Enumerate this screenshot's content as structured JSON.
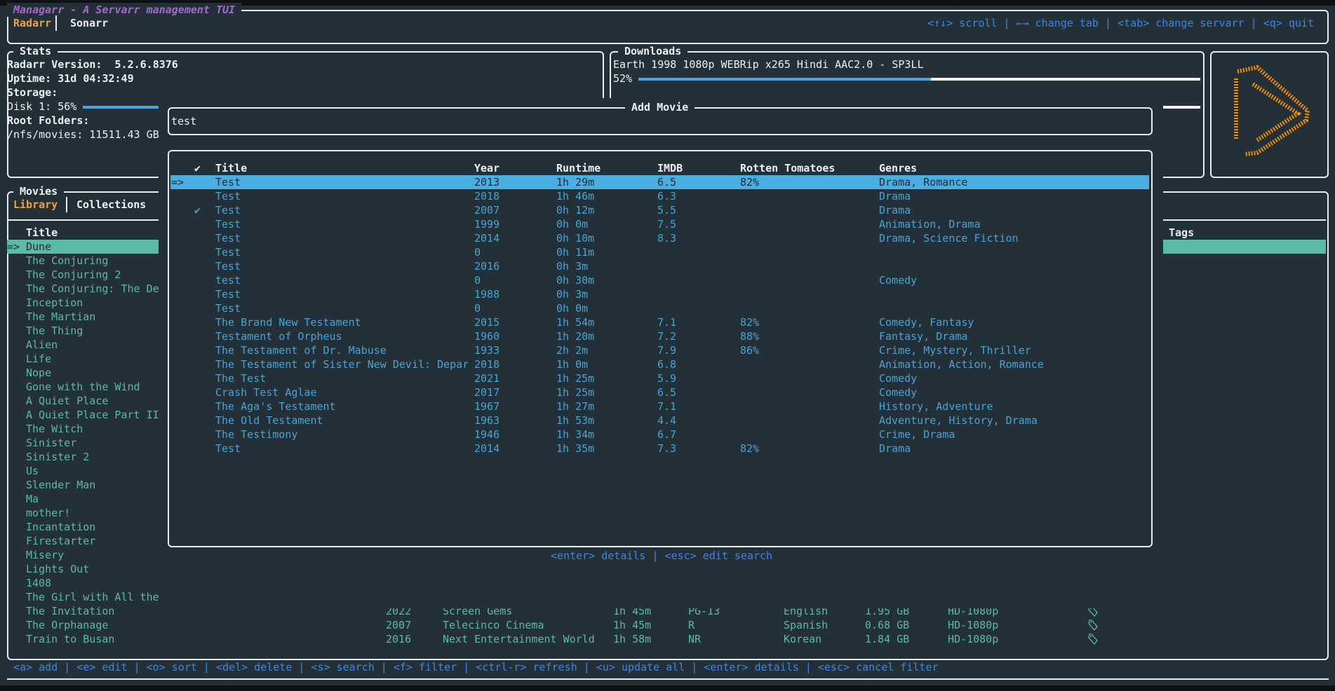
{
  "app": {
    "title": "Managarr - A Servarr management TUI",
    "tabs": [
      "Radarr",
      "Sonarr"
    ],
    "active_tab": "Radarr",
    "help": "<↑↓> scroll | ←→ change tab | <tab> change servarr | <q> quit"
  },
  "stats": {
    "title": "Stats",
    "version_label": "Radarr Version:  5.2.6.8376",
    "uptime": "Uptime: 31d 04:32:49",
    "storage_label": "Storage:",
    "disk": "Disk 1: 56%",
    "disk_percent": 56,
    "root_label": "Root Folders:",
    "root": "/nfs/movies: 11511.43 GB"
  },
  "downloads": {
    "title": "Downloads",
    "items": [
      {
        "name": "Earth 1998 1080p WEBRip x265 Hindi AAC2.0 - SP3LL",
        "percent_label": "52%",
        "percent": 52
      }
    ]
  },
  "colors": {
    "background": "#243038",
    "selection_blue": "#4baee3",
    "selection_teal": "#5bbaa7",
    "accent_orange": "#f0a040",
    "title_purple": "#a36ac7",
    "help_blue": "#3d86e6"
  },
  "logo": {
    "icon": "radarr-logo-icon"
  },
  "movies": {
    "title": "Movies",
    "tabs": [
      "Library",
      "Collections"
    ],
    "active_tab": "Library",
    "columns": {
      "title": "Title",
      "tags": "Tags"
    },
    "selected_marker": "=>",
    "library": [
      "Dune",
      "The Conjuring",
      "The Conjuring 2",
      "The Conjuring: The De",
      "Inception",
      "The Martian",
      "The Thing",
      "Alien",
      "Life",
      "Nope",
      "Gone with the Wind",
      "A Quiet Place",
      "A Quiet Place Part II",
      "The Witch",
      "Sinister",
      "Sinister 2",
      "Us",
      "Slender Man",
      "Ma",
      "mother!",
      "Incantation",
      "Firestarter",
      "Misery",
      "Lights Out",
      "1408",
      "The Girl with All the",
      "The Invitation",
      "The Orphanage",
      "Train to Busan"
    ],
    "visible_details": [
      {
        "year": "2022",
        "studio": "Screen Gems",
        "runtime": "1h 45m",
        "rating": "PG-13",
        "language": "English",
        "size": "1.95 GB",
        "quality": "HD-1080p",
        "icon": "tag-icon"
      },
      {
        "year": "2007",
        "studio": "Telecinco Cinema",
        "runtime": "1h 45m",
        "rating": "R",
        "language": "Spanish",
        "size": "0.68 GB",
        "quality": "HD-1080p",
        "icon": "tag-icon"
      },
      {
        "year": "2016",
        "studio": "Next Entertainment World",
        "runtime": "1h 58m",
        "rating": "NR",
        "language": "Korean",
        "size": "1.84 GB",
        "quality": "HD-1080p",
        "icon": "tag-icon"
      }
    ],
    "help": "<a> add | <e> edit | <o> sort | <del> delete | <s> search | <f> filter | <ctrl-r> refresh | <u> update all | <enter> details | <esc> cancel filter"
  },
  "add_movie": {
    "title": "Add Movie",
    "search_value": "test",
    "columns": {
      "check": "✔",
      "title": "Title",
      "year": "Year",
      "runtime": "Runtime",
      "imdb": "IMDB",
      "rt": "Rotten Tomatoes",
      "genres": "Genres"
    },
    "selected_marker": "=>",
    "results": [
      {
        "check": "",
        "title": "Test",
        "year": "2013",
        "runtime": "1h 29m",
        "imdb": "6.5",
        "rt": "82%",
        "genres": "Drama, Romance"
      },
      {
        "check": "",
        "title": "Test",
        "year": "2018",
        "runtime": "1h 46m",
        "imdb": "6.3",
        "rt": "",
        "genres": "Drama"
      },
      {
        "check": "✔",
        "title": "Test",
        "year": "2007",
        "runtime": "0h 12m",
        "imdb": "5.5",
        "rt": "",
        "genres": "Drama"
      },
      {
        "check": "",
        "title": "Test",
        "year": "1999",
        "runtime": "0h 0m",
        "imdb": "7.5",
        "rt": "",
        "genres": "Animation, Drama"
      },
      {
        "check": "",
        "title": "Test",
        "year": "2014",
        "runtime": "0h 10m",
        "imdb": "8.3",
        "rt": "",
        "genres": "Drama, Science Fiction"
      },
      {
        "check": "",
        "title": "Test",
        "year": "0",
        "runtime": "0h 11m",
        "imdb": "",
        "rt": "",
        "genres": ""
      },
      {
        "check": "",
        "title": "Test",
        "year": "2016",
        "runtime": "0h 3m",
        "imdb": "",
        "rt": "",
        "genres": ""
      },
      {
        "check": "",
        "title": "test",
        "year": "0",
        "runtime": "0h 30m",
        "imdb": "",
        "rt": "",
        "genres": "Comedy"
      },
      {
        "check": "",
        "title": "Test",
        "year": "1988",
        "runtime": "0h 3m",
        "imdb": "",
        "rt": "",
        "genres": ""
      },
      {
        "check": "",
        "title": "Test",
        "year": "0",
        "runtime": "0h 0m",
        "imdb": "",
        "rt": "",
        "genres": ""
      },
      {
        "check": "",
        "title": "The Brand New Testament",
        "year": "2015",
        "runtime": "1h 54m",
        "imdb": "7.1",
        "rt": "82%",
        "genres": "Comedy, Fantasy"
      },
      {
        "check": "",
        "title": "Testament of Orpheus",
        "year": "1960",
        "runtime": "1h 20m",
        "imdb": "7.2",
        "rt": "88%",
        "genres": "Fantasy, Drama"
      },
      {
        "check": "",
        "title": "The Testament of Dr. Mabuse",
        "year": "1933",
        "runtime": "2h 2m",
        "imdb": "7.9",
        "rt": "86%",
        "genres": "Crime, Mystery, Thriller"
      },
      {
        "check": "",
        "title": "The Testament of Sister New Devil: Depar",
        "year": "2018",
        "runtime": "1h 0m",
        "imdb": "6.8",
        "rt": "",
        "genres": "Animation, Action, Romance"
      },
      {
        "check": "",
        "title": "The Test",
        "year": "2021",
        "runtime": "1h 25m",
        "imdb": "5.9",
        "rt": "",
        "genres": "Comedy"
      },
      {
        "check": "",
        "title": "Crash Test Aglae",
        "year": "2017",
        "runtime": "1h 25m",
        "imdb": "6.5",
        "rt": "",
        "genres": "Comedy"
      },
      {
        "check": "",
        "title": "The Aga's Testament",
        "year": "1967",
        "runtime": "1h 27m",
        "imdb": "7.1",
        "rt": "",
        "genres": "History, Adventure"
      },
      {
        "check": "",
        "title": "The Old Testament",
        "year": "1963",
        "runtime": "1h 53m",
        "imdb": "4.4",
        "rt": "",
        "genres": "Adventure, History, Drama"
      },
      {
        "check": "",
        "title": "The Testimony",
        "year": "1946",
        "runtime": "1h 34m",
        "imdb": "6.7",
        "rt": "",
        "genres": "Crime, Drama"
      },
      {
        "check": "",
        "title": "Test",
        "year": "2014",
        "runtime": "1h 35m",
        "imdb": "7.3",
        "rt": "82%",
        "genres": "Drama"
      }
    ],
    "help": "<enter> details | <esc> edit search"
  }
}
